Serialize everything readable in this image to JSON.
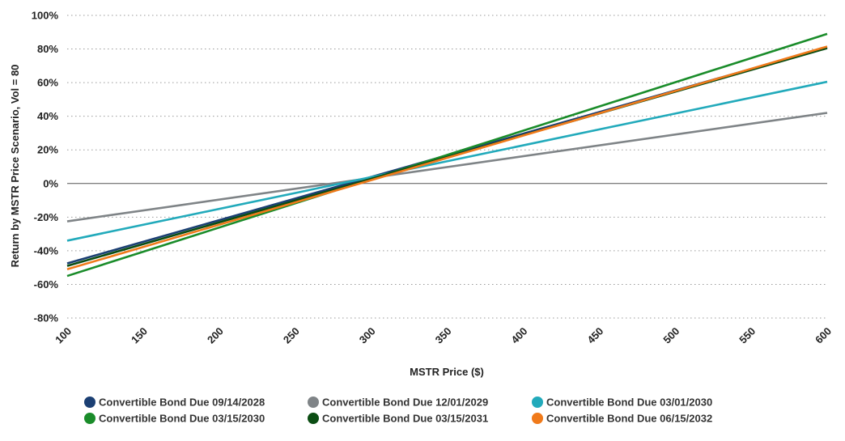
{
  "chart_data": {
    "type": "line",
    "xlabel": "MSTR Price ($)",
    "ylabel": "Return by MSTR Price Scenario, Vol = 80",
    "x": [
      100,
      600
    ],
    "xticks": [
      "100",
      "150",
      "200",
      "250",
      "300",
      "350",
      "400",
      "450",
      "500",
      "550",
      "600"
    ],
    "xlim": [
      100,
      600
    ],
    "ylim": [
      -80,
      100
    ],
    "yticks": [
      "100%",
      "80%",
      "60%",
      "40%",
      "20%",
      "0%",
      "-20%",
      "-40%",
      "-60%",
      "-80%"
    ],
    "grid": "horizontal dotted",
    "legend_position": "bottom",
    "series": [
      {
        "name": "Convertible Bond Due 09/14/2028",
        "color": "#1b3f73",
        "values": [
          -47.5,
          81.0
        ]
      },
      {
        "name": "Convertible Bond Due 12/01/2029",
        "color": "#7f8487",
        "values": [
          -22.5,
          42.0
        ]
      },
      {
        "name": "Convertible Bond Due 03/01/2030",
        "color": "#22aabb",
        "values": [
          -34.0,
          60.5
        ]
      },
      {
        "name": "Convertible Bond Due 03/15/2030",
        "color": "#1a8c2a",
        "values": [
          -55.0,
          89.0
        ]
      },
      {
        "name": "Convertible Bond Due 03/15/2031",
        "color": "#0b4d13",
        "values": [
          -49.0,
          80.5
        ]
      },
      {
        "name": "Convertible Bond Due 06/15/2032",
        "color": "#f07a1a",
        "values": [
          -51.0,
          81.5
        ]
      }
    ]
  }
}
